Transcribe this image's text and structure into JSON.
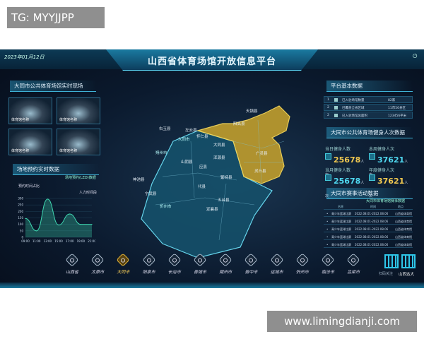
{
  "overlay": {
    "tag": "TG: MYYJJPP",
    "watermark": "www.limingdianji.com"
  },
  "header": {
    "date": "2023年01月12日",
    "title": "山西省体育场馆开放信息平台"
  },
  "left": {
    "live_title": "大同市公共体育场馆实时现场",
    "thumbs": [
      "体育馆名称",
      "体育馆名称",
      "体育馆名称",
      "体育馆名称"
    ],
    "booking_title": "场地预约实时数据",
    "booking_sub": "场地预约(LED)数据",
    "chart_title": "预约时间占比",
    "chart_data": {
      "type": "area",
      "title": "预约时间占比",
      "legend": "人力时间段",
      "x": [
        "09:00",
        "11:00",
        "13:00",
        "15:00",
        "17:00",
        "19:00",
        "21:00"
      ],
      "values": [
        145,
        50,
        295,
        95,
        180,
        100,
        100
      ],
      "yticks": [
        0,
        50,
        100,
        150,
        200,
        250,
        300
      ],
      "ylim": [
        0,
        300
      ],
      "color": "#3fd6b0"
    }
  },
  "map": {
    "highlight_color": "#c9a93a",
    "labels": [
      "大同市",
      "朔州市",
      "忻州市",
      "天镇县",
      "阳高县",
      "大同县",
      "广灵县",
      "浑源县",
      "灵丘县",
      "左云县",
      "怀仁县",
      "山阴县",
      "应县",
      "繁峙县",
      "代县",
      "五台县",
      "定襄县",
      "神池县",
      "宁武县",
      "右玉县"
    ]
  },
  "right": {
    "base_title": "平台基本数据",
    "base_rows": [
      {
        "n": "1",
        "label": "已入驻场馆数量",
        "value": "82家"
      },
      {
        "n": "2",
        "label": "已覆盖全省区域",
        "value": "11市56县区"
      },
      {
        "n": "2",
        "label": "已入驻场馆总面积",
        "value": "123456平米"
      }
    ],
    "fitness_title": "大同市公共体育场健身人次数据",
    "stats": [
      {
        "label": "当日健身人数",
        "value": "25678",
        "unit": "人次",
        "color": "#f0c850"
      },
      {
        "label": "本周健身人次",
        "value": "37621",
        "unit": "人次",
        "color": "#4fd8f0"
      },
      {
        "label": "当月健身人数",
        "value": "25678",
        "unit": "人次",
        "color": "#4fd8f0"
      },
      {
        "label": "年度健身人次",
        "value": "37621",
        "unit": "人次",
        "color": "#f0c850"
      }
    ],
    "event_title": "大同市赛事活动数据",
    "event_sub": "大同市体育场馆赛事数据",
    "event_headers": [
      "名称",
      "时间",
      "地点"
    ],
    "events": [
      {
        "name": "青少年篮球比赛",
        "time": "2022.08.01-2022.08.06",
        "place": "山西省体育馆"
      },
      {
        "name": "青少年篮球比赛",
        "time": "2022.08.01-2022.08.06",
        "place": "山西省体育馆"
      },
      {
        "name": "青少年篮球比赛",
        "time": "2022.08.01-2022.08.06",
        "place": "山西省体育馆"
      },
      {
        "name": "青少年篮球比赛",
        "time": "2022.08.01-2022.08.06",
        "place": "山西省体育馆"
      },
      {
        "name": "青少年篮球比赛",
        "time": "2022.08.01-2022.08.06",
        "place": "山西省体育馆"
      }
    ],
    "qr_caption": "扫码关注",
    "qr_brand": "山西达大"
  },
  "nav": {
    "active": "大同市",
    "items": [
      "山西省",
      "太原市",
      "大同市",
      "阳泉市",
      "长治市",
      "晋城市",
      "朔州市",
      "晋中市",
      "运城市",
      "忻州市",
      "临汾市",
      "吕梁市"
    ]
  }
}
